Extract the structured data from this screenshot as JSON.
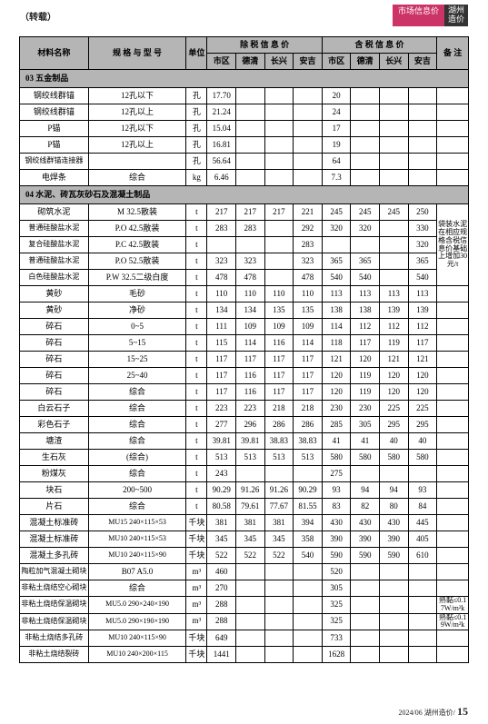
{
  "header": {
    "left": "（转载）",
    "market_badge": "市场信息价",
    "logo_top": "湖州",
    "logo_bottom": "造价"
  },
  "table_head": {
    "mat_name": "材料名称",
    "spec": "规 格 与 型 号",
    "unit": "单位",
    "excl_tax": "除 税 信 息 价",
    "incl_tax": "含 税 信 息 价",
    "note": "备 注",
    "city": "市区",
    "deqing": "德清",
    "changxing": "长兴",
    "anji": "安吉"
  },
  "sections": {
    "s03": "03 五金制品",
    "s04": "04 水泥、砖瓦灰砂石及混凝土制品"
  },
  "s03_rows": [
    {
      "name": "钢绞线群锚",
      "spec": "12孔以下",
      "unit": "孔",
      "e": [
        "17.70",
        "",
        "",
        ""
      ],
      "i": [
        "20",
        "",
        "",
        ""
      ]
    },
    {
      "name": "钢绞线群锚",
      "spec": "12孔以上",
      "unit": "孔",
      "e": [
        "21.24",
        "",
        "",
        ""
      ],
      "i": [
        "24",
        "",
        "",
        ""
      ]
    },
    {
      "name": "P锚",
      "spec": "12孔以下",
      "unit": "孔",
      "e": [
        "15.04",
        "",
        "",
        ""
      ],
      "i": [
        "17",
        "",
        "",
        ""
      ]
    },
    {
      "name": "P锚",
      "spec": "12孔以上",
      "unit": "孔",
      "e": [
        "16.81",
        "",
        "",
        ""
      ],
      "i": [
        "19",
        "",
        "",
        ""
      ]
    },
    {
      "name": "钢绞线群锚连接器",
      "spec": "",
      "unit": "孔",
      "e": [
        "56.64",
        "",
        "",
        ""
      ],
      "i": [
        "64",
        "",
        "",
        ""
      ]
    },
    {
      "name": "电焊条",
      "spec": "综合",
      "unit": "kg",
      "e": [
        "6.46",
        "",
        "",
        ""
      ],
      "i": [
        "7.3",
        "",
        "",
        ""
      ]
    }
  ],
  "s04_note": "袋装水泥在相应规格含税信息价基础上增加30元/t",
  "s04_rows_top": [
    {
      "name": "砌筑水泥",
      "spec": "M 32.5散装",
      "unit": "t",
      "e": [
        "217",
        "217",
        "217",
        "221"
      ],
      "i": [
        "245",
        "245",
        "245",
        "250"
      ]
    },
    {
      "name": "普通硅酸盐水泥",
      "spec": "P.O 42.5散装",
      "unit": "t",
      "e": [
        "283",
        "283",
        "",
        "292"
      ],
      "i": [
        "320",
        "320",
        "",
        "330"
      ]
    },
    {
      "name": "复合硅酸盐水泥",
      "spec": "P.C 42.5散装",
      "unit": "t",
      "e": [
        "",
        "",
        "",
        "283"
      ],
      "i": [
        "",
        "",
        "",
        "320"
      ]
    },
    {
      "name": "普通硅酸盐水泥",
      "spec": "P.O 52.5散装",
      "unit": "t",
      "e": [
        "323",
        "323",
        "",
        "323"
      ],
      "i": [
        "365",
        "365",
        "",
        "365"
      ]
    },
    {
      "name": "白色硅酸盐水泥",
      "spec": "P.W 32.5二级白度",
      "unit": "t",
      "e": [
        "478",
        "478",
        "",
        "478"
      ],
      "i": [
        "540",
        "540",
        "",
        "540"
      ]
    }
  ],
  "s04_rows_rest": [
    {
      "name": "黄砂",
      "spec": "毛砂",
      "unit": "t",
      "e": [
        "110",
        "110",
        "110",
        "110"
      ],
      "i": [
        "113",
        "113",
        "113",
        "113"
      ]
    },
    {
      "name": "黄砂",
      "spec": "净砂",
      "unit": "t",
      "e": [
        "134",
        "134",
        "135",
        "135"
      ],
      "i": [
        "138",
        "138",
        "139",
        "139"
      ]
    },
    {
      "name": "碎石",
      "spec": "0~5",
      "unit": "t",
      "e": [
        "111",
        "109",
        "109",
        "109"
      ],
      "i": [
        "114",
        "112",
        "112",
        "112"
      ]
    },
    {
      "name": "碎石",
      "spec": "5~15",
      "unit": "t",
      "e": [
        "115",
        "114",
        "116",
        "114"
      ],
      "i": [
        "118",
        "117",
        "119",
        "117"
      ]
    },
    {
      "name": "碎石",
      "spec": "15~25",
      "unit": "t",
      "e": [
        "117",
        "117",
        "117",
        "117"
      ],
      "i": [
        "121",
        "120",
        "121",
        "121"
      ]
    },
    {
      "name": "碎石",
      "spec": "25~40",
      "unit": "t",
      "e": [
        "117",
        "116",
        "117",
        "117"
      ],
      "i": [
        "120",
        "119",
        "120",
        "120"
      ]
    },
    {
      "name": "碎石",
      "spec": "综合",
      "unit": "t",
      "e": [
        "117",
        "116",
        "117",
        "117"
      ],
      "i": [
        "120",
        "119",
        "120",
        "120"
      ]
    },
    {
      "name": "白云石子",
      "spec": "综合",
      "unit": "t",
      "e": [
        "223",
        "223",
        "218",
        "218"
      ],
      "i": [
        "230",
        "230",
        "225",
        "225"
      ]
    },
    {
      "name": "彩色石子",
      "spec": "综合",
      "unit": "t",
      "e": [
        "277",
        "296",
        "286",
        "286"
      ],
      "i": [
        "285",
        "305",
        "295",
        "295"
      ]
    },
    {
      "name": "塘渣",
      "spec": "综合",
      "unit": "t",
      "e": [
        "39.81",
        "39.81",
        "38.83",
        "38.83"
      ],
      "i": [
        "41",
        "41",
        "40",
        "40"
      ]
    },
    {
      "name": "生石灰",
      "spec": "(综合)",
      "unit": "t",
      "e": [
        "513",
        "513",
        "513",
        "513"
      ],
      "i": [
        "580",
        "580",
        "580",
        "580"
      ]
    },
    {
      "name": "粉煤灰",
      "spec": "综合",
      "unit": "t",
      "e": [
        "243",
        "",
        "",
        ""
      ],
      "i": [
        "275",
        "",
        "",
        ""
      ]
    },
    {
      "name": "块石",
      "spec": "200~500",
      "unit": "t",
      "e": [
        "90.29",
        "91.26",
        "91.26",
        "90.29"
      ],
      "i": [
        "93",
        "94",
        "94",
        "93"
      ]
    },
    {
      "name": "片石",
      "spec": "综合",
      "unit": "t",
      "e": [
        "80.58",
        "79.61",
        "77.67",
        "81.55"
      ],
      "i": [
        "83",
        "82",
        "80",
        "84"
      ]
    },
    {
      "name": "混凝土标准砖",
      "spec": "MU15 240×115×53",
      "unit": "千块",
      "e": [
        "381",
        "381",
        "381",
        "394"
      ],
      "i": [
        "430",
        "430",
        "430",
        "445"
      ]
    },
    {
      "name": "混凝土标准砖",
      "spec": "MU10 240×115×53",
      "unit": "千块",
      "e": [
        "345",
        "345",
        "345",
        "358"
      ],
      "i": [
        "390",
        "390",
        "390",
        "405"
      ]
    },
    {
      "name": "混凝土多孔砖",
      "spec": "MU10 240×115×90",
      "unit": "千块",
      "e": [
        "522",
        "522",
        "522",
        "540"
      ],
      "i": [
        "590",
        "590",
        "590",
        "610"
      ]
    },
    {
      "name": "陶粒加气混凝土砌块",
      "spec": "B07 A5.0",
      "unit": "m³",
      "e": [
        "460",
        "",
        "",
        ""
      ],
      "i": [
        "520",
        "",
        "",
        ""
      ],
      "note": ""
    },
    {
      "name": "非粘土烧结空心砌块",
      "spec": "综合",
      "unit": "m³",
      "e": [
        "270",
        "",
        "",
        ""
      ],
      "i": [
        "305",
        "",
        "",
        ""
      ],
      "note": ""
    },
    {
      "name": "非粘土烧结保温砌块",
      "spec": "MU5.0 290×240×190",
      "unit": "m³",
      "e": [
        "288",
        "",
        "",
        ""
      ],
      "i": [
        "325",
        "",
        "",
        ""
      ],
      "note": "熟黏≤0.17W/m²k"
    },
    {
      "name": "非粘土烧结保温砌块",
      "spec": "MU5.0 290×190×190",
      "unit": "m³",
      "e": [
        "288",
        "",
        "",
        ""
      ],
      "i": [
        "325",
        "",
        "",
        ""
      ],
      "note": "熟黏≤0.19W/m²k"
    },
    {
      "name": "非粘土烧结多孔砖",
      "spec": "MU10 240×115×90",
      "unit": "千块",
      "e": [
        "649",
        "",
        "",
        ""
      ],
      "i": [
        "733",
        "",
        "",
        ""
      ],
      "note": ""
    },
    {
      "name": "非粘土烧结裂砖",
      "spec": "MU10 240×200×115",
      "unit": "千块",
      "e": [
        "1441",
        "",
        "",
        ""
      ],
      "i": [
        "1628",
        "",
        "",
        ""
      ],
      "note": ""
    }
  ],
  "footer": {
    "date": "2024/06 湖州造价/",
    "page": "15"
  }
}
